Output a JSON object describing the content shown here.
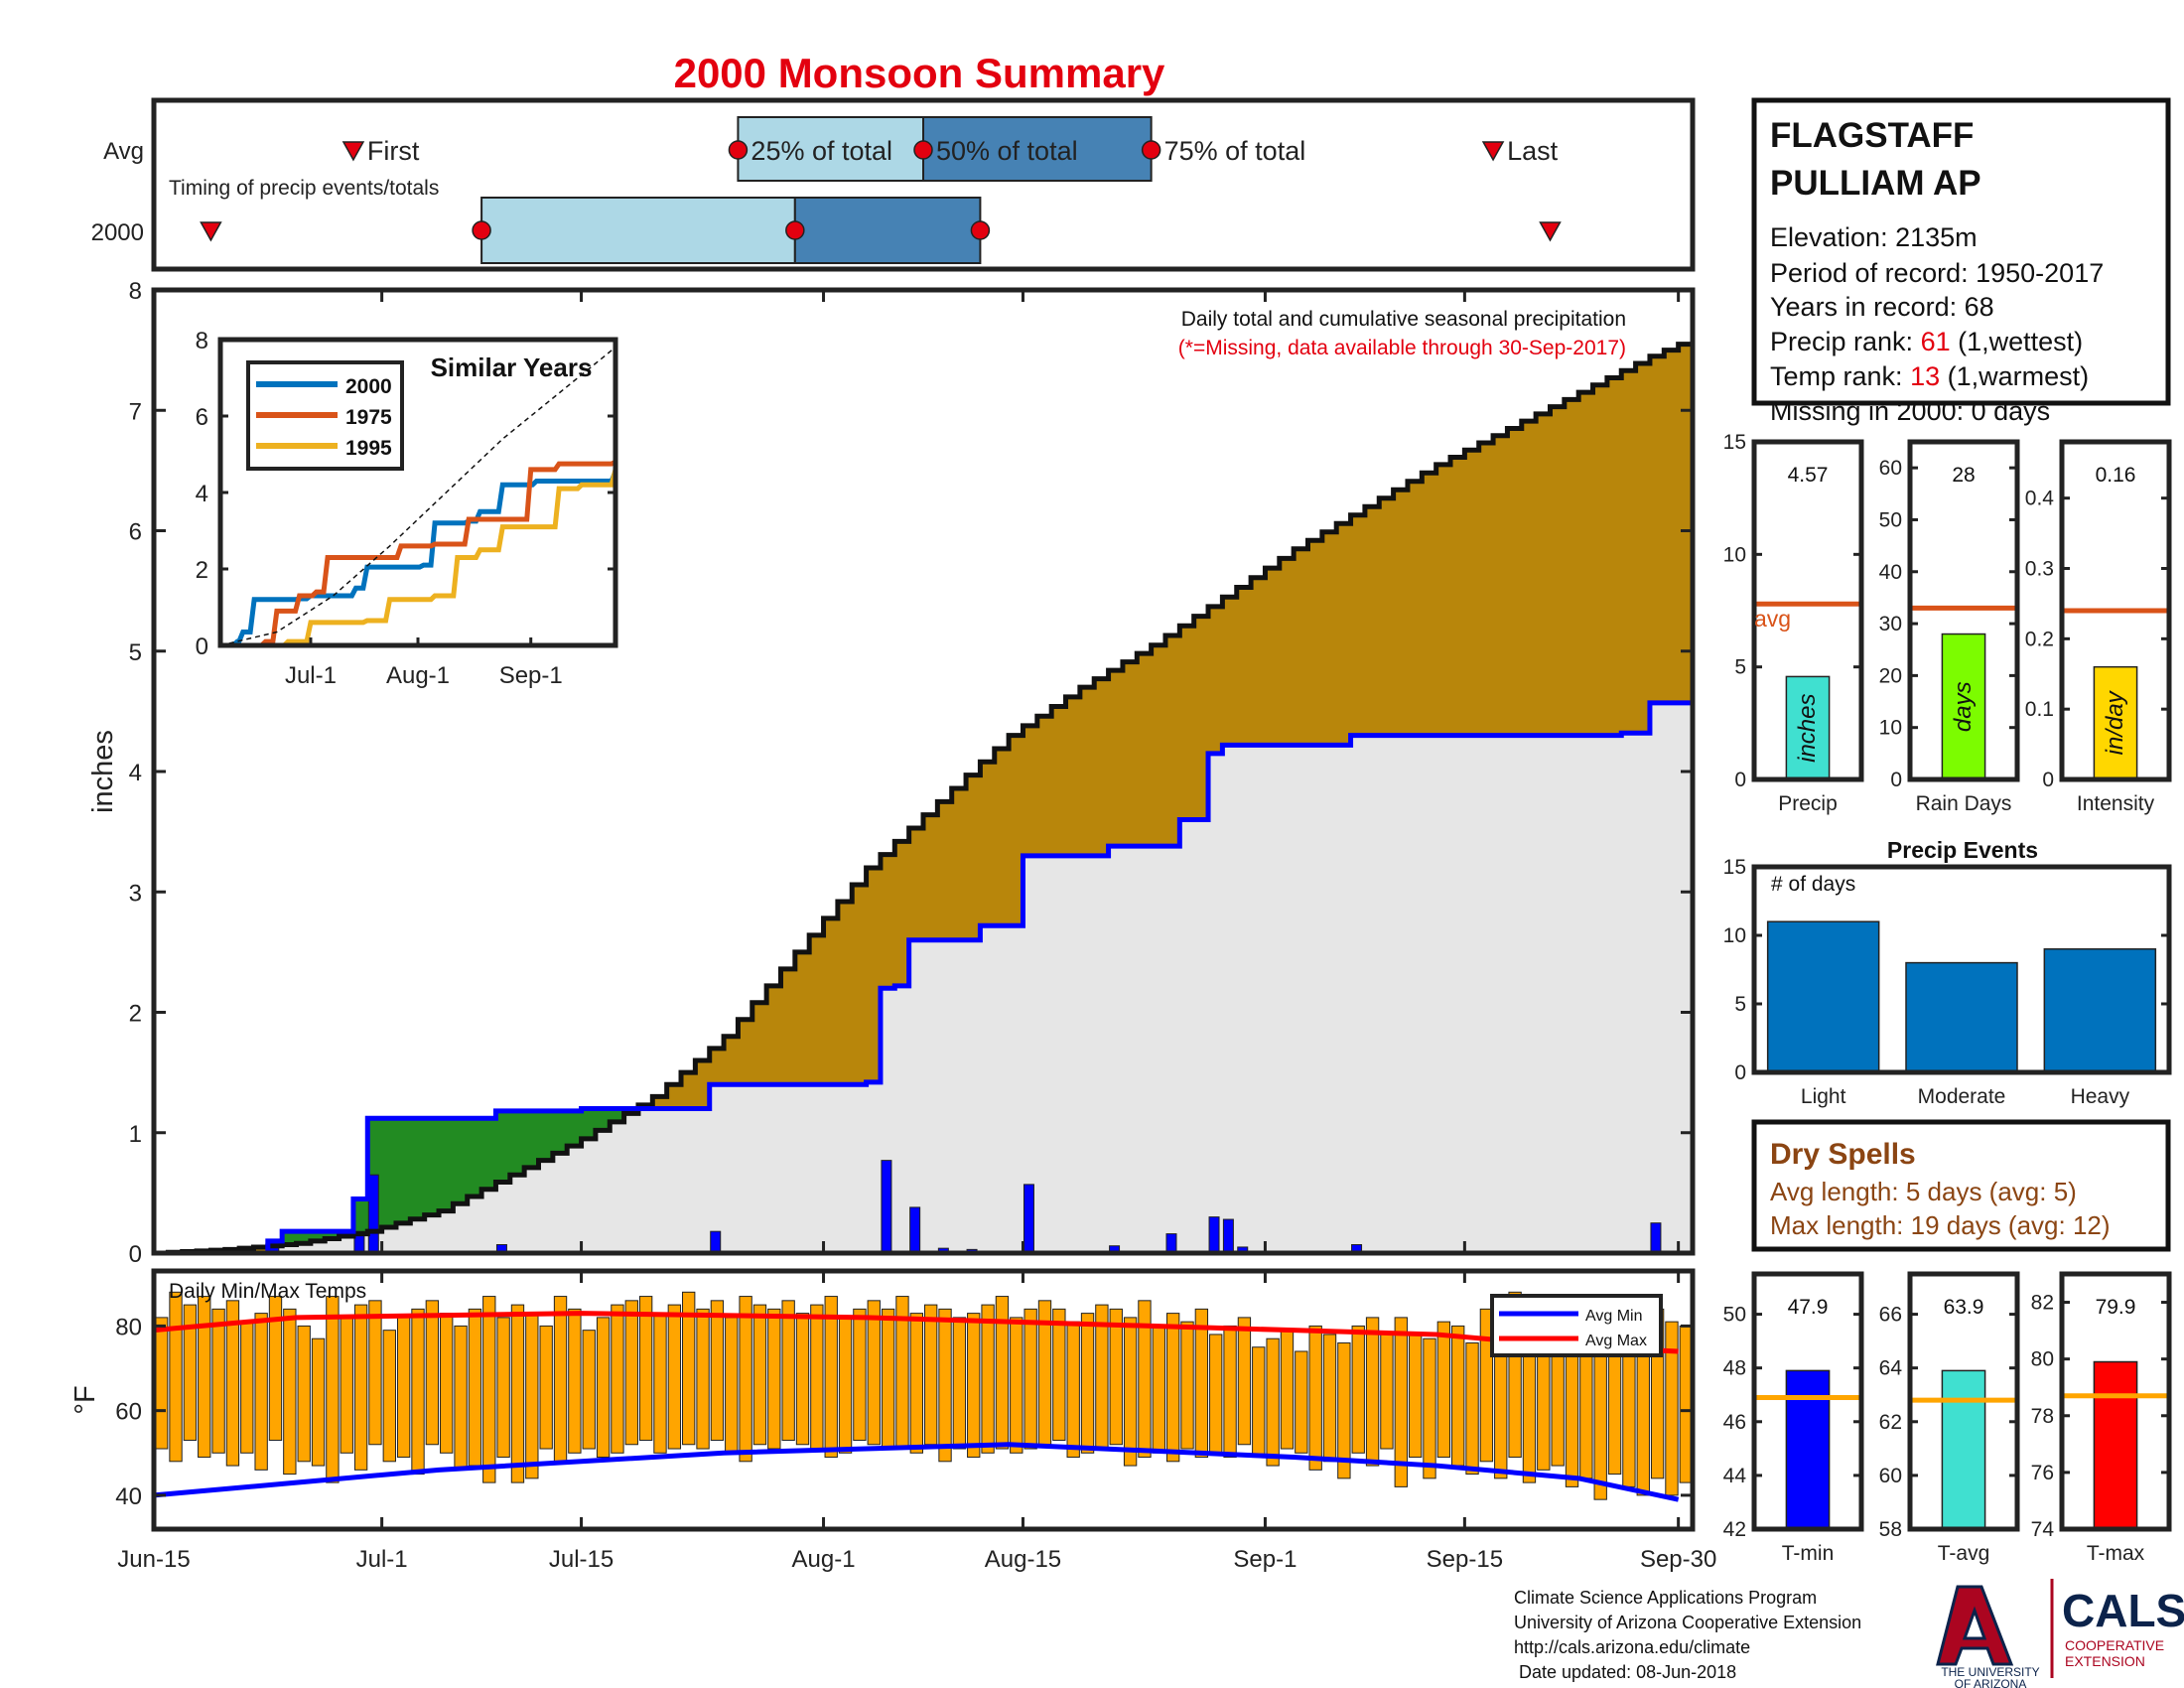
{
  "title": "2000 Monsoon Summary",
  "station": {
    "name_line1": "FLAGSTAFF",
    "name_line2": "PULLIAM AP",
    "elevation": "Elevation: 2135m",
    "period": "Period of record: 1950-2017",
    "years": "Years in record: 68",
    "precip_rank_label": "Precip rank: ",
    "precip_rank_value": "61",
    "precip_rank_note": " (1,wettest)",
    "temp_rank_label": "Temp rank: ",
    "temp_rank_value": "13",
    "temp_rank_note": " (1,warmest)",
    "missing": "Missing in 2000: 0 days"
  },
  "timing": {
    "row_avg": "Avg",
    "row_year": "2000",
    "first": "First",
    "last": "Last",
    "p25": "25% of total",
    "p50": "50% of total",
    "p75": "75% of total",
    "caption": "Timing of precip events/totals",
    "avg_days": {
      "first": 14,
      "p25": 41,
      "p50": 54,
      "p75": 70,
      "last": 94
    },
    "year_days": {
      "first": 4,
      "p25": 23,
      "p50": 45,
      "p75": 58,
      "last": 98
    }
  },
  "main_chart": {
    "ylabel": "inches",
    "note1": "Daily total and cumulative seasonal precipitation",
    "note2": "(*=Missing, data available through 30-Sep-2017)",
    "x_ticks": [
      "Jun-15",
      "Jul-1",
      "Jul-15",
      "Aug-1",
      "Aug-15",
      "Sep-1",
      "Sep-15",
      "Sep-30"
    ],
    "y_ticks": [
      "0",
      "1",
      "2",
      "3",
      "4",
      "5",
      "6",
      "7",
      "8"
    ]
  },
  "inset": {
    "title": "Similar Years",
    "legend": [
      "2000",
      "1975",
      "1995"
    ],
    "y_ticks": [
      "0",
      "2",
      "4",
      "6",
      "8"
    ],
    "x_ticks": [
      "Jul-1",
      "Aug-1",
      "Sep-1"
    ]
  },
  "temps_chart": {
    "title": "Daily Min/Max Temps",
    "ylabel": "°F",
    "legend_min": "Avg Min",
    "legend_max": "Avg Max",
    "y_ticks": [
      "40",
      "60",
      "80"
    ]
  },
  "stats": {
    "precip": {
      "value": "4.57",
      "label": "Precip",
      "unit": "inches",
      "ticks": [
        "0",
        "5",
        "10",
        "15"
      ],
      "avg_label": "avg"
    },
    "raindays": {
      "value": "28",
      "label": "Rain Days",
      "unit": "days",
      "ticks": [
        "0",
        "10",
        "20",
        "30",
        "40",
        "50",
        "60"
      ]
    },
    "intensity": {
      "value": "0.16",
      "label": "Intensity",
      "unit": "in/day",
      "ticks": [
        "0",
        "0.1",
        "0.2",
        "0.3",
        "0.4"
      ]
    }
  },
  "events": {
    "title": "Precip Events",
    "ylabel": "# of days",
    "ticks": [
      "0",
      "5",
      "10",
      "15"
    ],
    "categories": [
      "Light",
      "Moderate",
      "Heavy"
    ]
  },
  "dry_spells": {
    "title": "Dry Spells",
    "avg": "Avg length: 5 days (avg: 5)",
    "max": "Max length: 19 days (avg: 12)"
  },
  "temp_stats": {
    "tmin": {
      "value": "47.9",
      "label": "T-min",
      "ticks": [
        "42",
        "44",
        "46",
        "48",
        "50"
      ]
    },
    "tavg": {
      "value": "63.9",
      "label": "T-avg",
      "ticks": [
        "58",
        "60",
        "62",
        "64",
        "66"
      ]
    },
    "tmax": {
      "value": "79.9",
      "label": "T-max",
      "ticks": [
        "74",
        "76",
        "78",
        "80",
        "82"
      ]
    }
  },
  "footer": {
    "line1": "Climate Science Applications Program",
    "line2": "University of Arizona Cooperative Extension",
    "line3": "http://cals.arizona.edu/climate",
    "line4": " Date updated: 08-Jun-2018",
    "ua1": "THE UNIVERSITY",
    "ua2": "OF ARIZONA",
    "cals": "CALS",
    "coop1": "COOPERATIVE",
    "coop2": "EXTENSION"
  },
  "colors": {
    "title": "#e3000f",
    "cumulative_fill": "#b8860b",
    "early_fill": "#228b22",
    "obs_line": "#0000ff",
    "avg_bar": "#e6e6e6",
    "temp_bar": "#ffa500",
    "avg_min": "#0000ff",
    "avg_max": "#ff0000",
    "light_blue": "#add8e6",
    "steel_blue": "#4682b4",
    "dry_spell": "#8b4513",
    "series_2000": "#0072bd",
    "series_1975": "#d95319",
    "series_1995": "#edb120"
  },
  "chart_data": [
    {
      "type": "area",
      "name": "cumulative",
      "x_label": "day",
      "avg_cumulative": [
        [
          0,
          0
        ],
        [
          5,
          0.03
        ],
        [
          10,
          0.08
        ],
        [
          15,
          0.18
        ],
        [
          20,
          0.35
        ],
        [
          25,
          0.65
        ],
        [
          30,
          0.95
        ],
        [
          35,
          1.3
        ],
        [
          40,
          1.8
        ],
        [
          45,
          2.5
        ],
        [
          50,
          3.2
        ],
        [
          55,
          3.75
        ],
        [
          60,
          4.3
        ],
        [
          65,
          4.7
        ],
        [
          70,
          5.05
        ],
        [
          75,
          5.45
        ],
        [
          80,
          5.85
        ],
        [
          85,
          6.2
        ],
        [
          90,
          6.55
        ],
        [
          95,
          6.85
        ],
        [
          100,
          7.15
        ],
        [
          105,
          7.45
        ],
        [
          108,
          7.6
        ]
      ],
      "obs_cumulative": [
        [
          0,
          0
        ],
        [
          8,
          0.1
        ],
        [
          9,
          0.18
        ],
        [
          13,
          0.18
        ],
        [
          14,
          0.45
        ],
        [
          15,
          1.12
        ],
        [
          23,
          1.12
        ],
        [
          24,
          1.18
        ],
        [
          30,
          1.2
        ],
        [
          38,
          1.2
        ],
        [
          39,
          1.4
        ],
        [
          50,
          1.42
        ],
        [
          51,
          2.2
        ],
        [
          52,
          2.22
        ],
        [
          53,
          2.6
        ],
        [
          58,
          2.72
        ],
        [
          61,
          3.3
        ],
        [
          67,
          3.38
        ],
        [
          72,
          3.6
        ],
        [
          74,
          4.15
        ],
        [
          75,
          4.22
        ],
        [
          84,
          4.3
        ],
        [
          103,
          4.32
        ],
        [
          105,
          4.57
        ],
        [
          108,
          4.57
        ]
      ],
      "daily_precip": [
        [
          8,
          0.1
        ],
        [
          14,
          0.18
        ],
        [
          15,
          0.65
        ],
        [
          24,
          0.07
        ],
        [
          39,
          0.18
        ],
        [
          51,
          0.77
        ],
        [
          53,
          0.38
        ],
        [
          55,
          0.04
        ],
        [
          57,
          0.03
        ],
        [
          61,
          0.57
        ],
        [
          67,
          0.06
        ],
        [
          71,
          0.16
        ],
        [
          74,
          0.3
        ],
        [
          75,
          0.28
        ],
        [
          76,
          0.05
        ],
        [
          84,
          0.07
        ],
        [
          105,
          0.25
        ]
      ],
      "ylim": [
        0,
        8
      ]
    },
    {
      "type": "line",
      "name": "similar_years",
      "series": [
        {
          "name": "2000",
          "points": [
            [
              0,
              0
            ],
            [
              3,
              0.1
            ],
            [
              4,
              0.35
            ],
            [
              6,
              1.2
            ],
            [
              14,
              1.22
            ],
            [
              16,
              1.3
            ],
            [
              24,
              1.5
            ],
            [
              26,
              2.05
            ],
            [
              36,
              2.1
            ],
            [
              38,
              3.2
            ],
            [
              44,
              3.25
            ],
            [
              46,
              3.5
            ],
            [
              50,
              4.2
            ],
            [
              56,
              4.3
            ],
            [
              65,
              4.3
            ],
            [
              70,
              4.55
            ]
          ]
        },
        {
          "name": "1975",
          "points": [
            [
              0,
              0
            ],
            [
              8,
              0.1
            ],
            [
              10,
              0.9
            ],
            [
              14,
              1.3
            ],
            [
              17,
              1.4
            ],
            [
              19,
              2.3
            ],
            [
              30,
              2.3
            ],
            [
              32,
              2.6
            ],
            [
              38,
              2.65
            ],
            [
              44,
              3.3
            ],
            [
              52,
              3.3
            ],
            [
              55,
              4.6
            ],
            [
              60,
              4.75
            ],
            [
              70,
              4.8
            ]
          ]
        },
        {
          "name": "1995",
          "points": [
            [
              0,
              0
            ],
            [
              12,
              0.1
            ],
            [
              16,
              0.6
            ],
            [
              26,
              0.65
            ],
            [
              30,
              1.2
            ],
            [
              38,
              1.3
            ],
            [
              42,
              2.3
            ],
            [
              46,
              2.5
            ],
            [
              50,
              3.1
            ],
            [
              56,
              3.1
            ],
            [
              60,
              4.1
            ],
            [
              64,
              4.2
            ],
            [
              70,
              4.6
            ]
          ]
        },
        {
          "name": "avg",
          "points": [
            [
              0,
              0
            ],
            [
              10,
              0.35
            ],
            [
              20,
              1.3
            ],
            [
              30,
              2.6
            ],
            [
              40,
              4
            ],
            [
              50,
              5.4
            ],
            [
              60,
              6.6
            ],
            [
              70,
              7.8
            ]
          ]
        }
      ],
      "ylim": [
        0,
        8
      ]
    },
    {
      "type": "bar",
      "name": "daily_temps",
      "min_temps": [
        51,
        48,
        53,
        49,
        50,
        47,
        50,
        46,
        53,
        45,
        48,
        47,
        43,
        50,
        46,
        52,
        48,
        49,
        45,
        52,
        50,
        46,
        47,
        43,
        49,
        43,
        44,
        51,
        48,
        50,
        51,
        49,
        50,
        52,
        53,
        50,
        51,
        52,
        51,
        53,
        50,
        48,
        52,
        51,
        53,
        52,
        51,
        49,
        50,
        53,
        52,
        51,
        51,
        50,
        52,
        48,
        51,
        49,
        50,
        51,
        50,
        51,
        52,
        53,
        49,
        50,
        51,
        52,
        47,
        49,
        50,
        48,
        51,
        49,
        50,
        49,
        52,
        49,
        47,
        51,
        50,
        46,
        48,
        44,
        50,
        47,
        51,
        42,
        49,
        44,
        49,
        47,
        45,
        48,
        44,
        49,
        43,
        46,
        47,
        42,
        44,
        39,
        45,
        42,
        40,
        44,
        40,
        43
      ],
      "max_temps": [
        82,
        88,
        85,
        87,
        84,
        86,
        81,
        83,
        87,
        84,
        80,
        77,
        87,
        82,
        85,
        86,
        79,
        82,
        84,
        86,
        83,
        80,
        84,
        87,
        82,
        85,
        83,
        80,
        87,
        84,
        79,
        82,
        85,
        86,
        87,
        83,
        85,
        88,
        84,
        86,
        82,
        87,
        85,
        84,
        86,
        83,
        85,
        87,
        82,
        84,
        86,
        84,
        87,
        83,
        85,
        84,
        82,
        83,
        85,
        87,
        82,
        84,
        86,
        84,
        81,
        83,
        85,
        84,
        82,
        86,
        80,
        83,
        81,
        84,
        78,
        80,
        82,
        75,
        77,
        79,
        74,
        80,
        78,
        76,
        80,
        82,
        78,
        82,
        78,
        77,
        81,
        80,
        76,
        84,
        86,
        88,
        82,
        86,
        84,
        80,
        77,
        85,
        82,
        79,
        80,
        84,
        81,
        80
      ],
      "avg_min": [
        [
          0,
          40
        ],
        [
          10,
          43
        ],
        [
          20,
          46
        ],
        [
          40,
          50
        ],
        [
          60,
          52
        ],
        [
          80,
          49
        ],
        [
          90,
          47
        ],
        [
          100,
          44
        ],
        [
          107,
          39
        ]
      ],
      "avg_max": [
        [
          0,
          79
        ],
        [
          10,
          82
        ],
        [
          30,
          83
        ],
        [
          50,
          82
        ],
        [
          60,
          81
        ],
        [
          70,
          80
        ],
        [
          80,
          79
        ],
        [
          90,
          78
        ],
        [
          100,
          75
        ],
        [
          107,
          74
        ]
      ],
      "ylim": [
        32,
        93
      ]
    },
    {
      "type": "bar",
      "name": "precip_total",
      "value": 4.57,
      "avg": 7.8,
      "ylim": [
        0,
        15
      ]
    },
    {
      "type": "bar",
      "name": "rain_days",
      "value": 28,
      "avg": 33,
      "ylim": [
        0,
        65
      ]
    },
    {
      "type": "bar",
      "name": "intensity",
      "value": 0.16,
      "avg": 0.24,
      "ylim": [
        0,
        0.48
      ]
    },
    {
      "type": "bar",
      "name": "precip_events",
      "categories": [
        "Light",
        "Moderate",
        "Heavy"
      ],
      "values": [
        11,
        8,
        9
      ],
      "ylim": [
        0,
        15
      ]
    },
    {
      "type": "bar",
      "name": "tmin",
      "value": 47.9,
      "avg": 46.9,
      "ylim": [
        42,
        51.5
      ]
    },
    {
      "type": "bar",
      "name": "tavg",
      "value": 63.9,
      "avg": 62.8,
      "ylim": [
        58,
        67.5
      ]
    },
    {
      "type": "bar",
      "name": "tmax",
      "value": 79.9,
      "avg": 78.7,
      "ylim": [
        74,
        83
      ]
    }
  ]
}
